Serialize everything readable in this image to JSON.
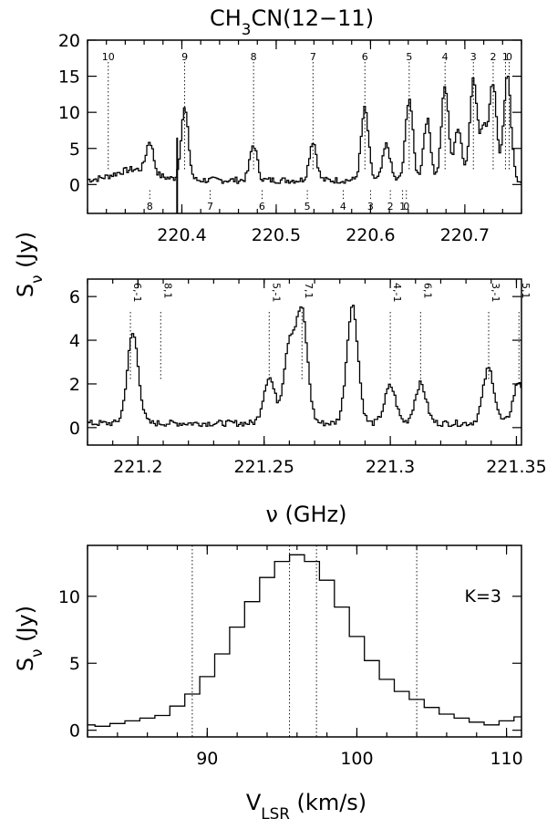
{
  "title": "CH3CN(12−11)",
  "ylabel": "Sν (Jy)",
  "xlabel_mid": "ν (GHz)",
  "xlabel_bottom": "VLSR (km/s)",
  "chart_data": [
    {
      "type": "line",
      "panel": "top",
      "title": "CH3CN(12−11)",
      "ylabel": "Sν (Jy)",
      "xlim": [
        220.3,
        220.76
      ],
      "ylim": [
        -4,
        20
      ],
      "xticks": [
        "220.4",
        "220.5",
        "220.6",
        "220.7"
      ],
      "yticks": [
        "0",
        "5",
        "10",
        "15",
        "20"
      ],
      "upper_markers": [
        {
          "label": "10",
          "x": 220.322
        },
        {
          "label": "9",
          "x": 220.403
        },
        {
          "label": "8",
          "x": 220.476
        },
        {
          "label": "7",
          "x": 220.539
        },
        {
          "label": "6",
          "x": 220.594
        },
        {
          "label": "5",
          "x": 220.641
        },
        {
          "label": "4",
          "x": 220.679
        },
        {
          "label": "3",
          "x": 220.709
        },
        {
          "label": "2",
          "x": 220.73
        },
        {
          "label": "1",
          "x": 220.743
        },
        {
          "label": "0",
          "x": 220.747
        }
      ],
      "lower_markers": [
        {
          "label": "8",
          "x": 220.366
        },
        {
          "label": "7",
          "x": 220.43
        },
        {
          "label": "6",
          "x": 220.485
        },
        {
          "label": "5",
          "x": 220.533
        },
        {
          "label": "4",
          "x": 220.571
        },
        {
          "label": "3",
          "x": 220.6
        },
        {
          "label": "2",
          "x": 220.621
        },
        {
          "label": "1",
          "x": 220.634
        },
        {
          "label": "0",
          "x": 220.638
        }
      ],
      "peaks": [
        {
          "x": 220.366,
          "y": 6.0
        },
        {
          "x": 220.403,
          "y": 10.5
        },
        {
          "x": 220.476,
          "y": 5.5
        },
        {
          "x": 220.539,
          "y": 6.0
        },
        {
          "x": 220.594,
          "y": 10.5
        },
        {
          "x": 220.617,
          "y": 5.5
        },
        {
          "x": 220.641,
          "y": 12.0
        },
        {
          "x": 220.66,
          "y": 9.0
        },
        {
          "x": 220.679,
          "y": 13.5
        },
        {
          "x": 220.693,
          "y": 8.0
        },
        {
          "x": 220.709,
          "y": 14.5
        },
        {
          "x": 220.72,
          "y": 8.0
        },
        {
          "x": 220.73,
          "y": 14.0
        },
        {
          "x": 220.745,
          "y": 15.0
        }
      ]
    },
    {
      "type": "line",
      "panel": "middle",
      "xlabel": "ν (GHz)",
      "xlim": [
        221.18,
        221.352
      ],
      "ylim": [
        -0.8,
        6.8
      ],
      "xticks": [
        "221.2",
        "221.25",
        "221.3",
        "221.35"
      ],
      "yticks": [
        "0",
        "2",
        "4",
        "6"
      ],
      "markers": [
        {
          "label": "6,-1",
          "x": 221.197
        },
        {
          "label": "8,1",
          "x": 221.209
        },
        {
          "label": "5,-1",
          "x": 221.252
        },
        {
          "label": "7,1",
          "x": 221.265
        },
        {
          "label": "4,-1",
          "x": 221.3
        },
        {
          "label": "6,1",
          "x": 221.312
        },
        {
          "label": "3,-1",
          "x": 221.339
        },
        {
          "label": "5,1",
          "x": 221.351
        }
      ],
      "peaks": [
        {
          "x": 221.198,
          "y": 4.3
        },
        {
          "x": 221.252,
          "y": 2.3
        },
        {
          "x": 221.26,
          "y": 3.8
        },
        {
          "x": 221.265,
          "y": 5.2
        },
        {
          "x": 221.285,
          "y": 5.6
        },
        {
          "x": 221.3,
          "y": 1.9
        },
        {
          "x": 221.312,
          "y": 2.0
        },
        {
          "x": 221.339,
          "y": 2.7
        },
        {
          "x": 221.351,
          "y": 2.1
        }
      ]
    },
    {
      "type": "line",
      "panel": "bottom",
      "annotation": "K=3",
      "ylabel": "Sν (Jy)",
      "xlabel": "VLSR (km/s)",
      "xlim": [
        82,
        111
      ],
      "ylim": [
        -0.5,
        13.8
      ],
      "xticks": [
        "90",
        "100",
        "110"
      ],
      "yticks": [
        "0",
        "5",
        "10"
      ],
      "vlines": [
        89,
        95.5,
        97.3,
        104
      ],
      "x": [
        82,
        83,
        84,
        85,
        86,
        87,
        88,
        89,
        90,
        91,
        92,
        93,
        94,
        95,
        96,
        97,
        98,
        99,
        100,
        101,
        102,
        103,
        104,
        105,
        106,
        107,
        108,
        109,
        110,
        111
      ],
      "y": [
        0.4,
        0.3,
        0.5,
        0.7,
        0.9,
        1.1,
        1.8,
        2.7,
        4.0,
        5.7,
        7.7,
        9.6,
        11.4,
        12.6,
        13.1,
        12.6,
        11.2,
        9.2,
        7.0,
        5.2,
        3.8,
        2.9,
        2.3,
        1.7,
        1.2,
        0.9,
        0.6,
        0.4,
        0.7,
        1.0
      ]
    }
  ]
}
